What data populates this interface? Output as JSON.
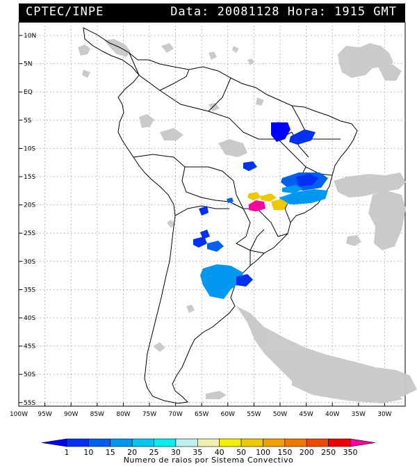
{
  "header": {
    "source": "CPTEC/INPE",
    "datetime": "Data: 20081128 Hora: 1915 GMT"
  },
  "latitude_labels": [
    "10N",
    "5N",
    "EQ",
    "5S",
    "10S",
    "15S",
    "20S",
    "25S",
    "30S",
    "35S",
    "40S",
    "45S",
    "50S",
    "55S"
  ],
  "longitude_labels": [
    "100W",
    "95W",
    "90W",
    "85W",
    "80W",
    "75W",
    "70W",
    "65W",
    "60W",
    "55W",
    "50W",
    "45W",
    "40W",
    "35W",
    "30W"
  ],
  "legend": {
    "values": [
      "1",
      "10",
      "15",
      "20",
      "25",
      "30",
      "35",
      "40",
      "50",
      "100",
      "150",
      "200",
      "250",
      "350"
    ],
    "colors": [
      "#0000ff",
      "#0030f0",
      "#0060f0",
      "#0098f0",
      "#00c8f0",
      "#00f0f0",
      "#c0f0f0",
      "#f0f0b0",
      "#f0f000",
      "#f0c800",
      "#f0a000",
      "#f07800",
      "#f04800",
      "#f00000",
      "#ff00a0"
    ],
    "title": "Numero de raios por Sistema Convectivo"
  }
}
